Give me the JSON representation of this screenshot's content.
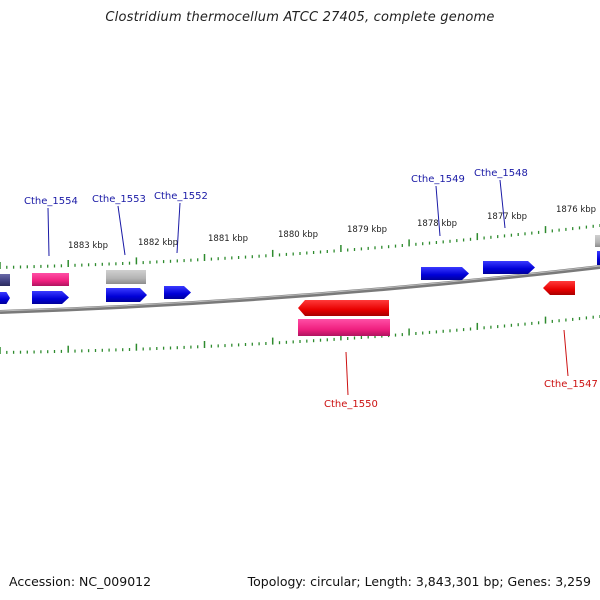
{
  "title": "Clostridium thermocellum ATCC 27405, complete genome",
  "footer": {
    "accession": "Accession: NC_009012",
    "summary": "Topology: circular; Length: 3,843,301 bp; Genes: 3,259"
  },
  "colors": {
    "backbone": "#8a8a8a",
    "tick": "#2e8b2e",
    "label_forward": "#1a1aa6",
    "label_reverse": "#cc1111",
    "gene_blue": "#0a0ae0",
    "gene_red": "#ee0000",
    "gene_pink": "#ff2d8f",
    "gene_grey": "#b8b8b8",
    "gene_navy": "#4a4a8c"
  },
  "scale_labels": [
    {
      "text": "1883 kbp",
      "kbp": 1883
    },
    {
      "text": "1882 kbp",
      "kbp": 1882
    },
    {
      "text": "1881 kbp",
      "kbp": 1881
    },
    {
      "text": "1880 kbp",
      "kbp": 1880
    },
    {
      "text": "1879 kbp",
      "kbp": 1879
    },
    {
      "text": "1878 kbp",
      "kbp": 1878
    },
    {
      "text": "1877 kbp",
      "kbp": 1877
    },
    {
      "text": "1876 kbp",
      "kbp": 1876
    }
  ],
  "gene_labels": [
    {
      "text": "Cthe_1554",
      "strand": "forward"
    },
    {
      "text": "Cthe_1553",
      "strand": "forward"
    },
    {
      "text": "Cthe_1552",
      "strand": "forward"
    },
    {
      "text": "Cthe_1549",
      "strand": "forward"
    },
    {
      "text": "Cthe_1548",
      "strand": "forward"
    },
    {
      "text": "Cthe_1550",
      "strand": "reverse"
    },
    {
      "text": "Cthe_1547",
      "strand": "reverse"
    }
  ]
}
